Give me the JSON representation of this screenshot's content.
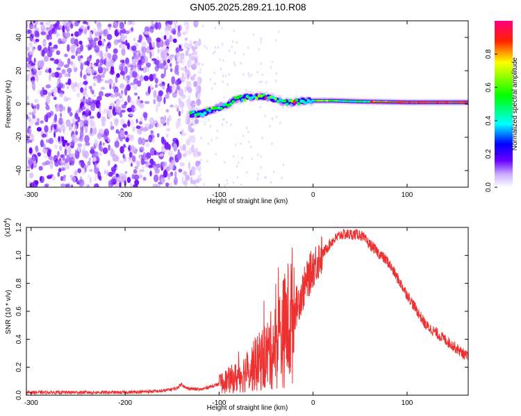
{
  "title": "GN05.2025.289.21.10.R08",
  "chart_data": [
    {
      "type": "heatmap",
      "xlabel": "Height of straight line (km)",
      "ylabel": "Frequency (Hz)",
      "xlim": [
        -305,
        165
      ],
      "ylim": [
        -50,
        50
      ],
      "xticks": [
        -300,
        -200,
        -100,
        0,
        100
      ],
      "yticks": [
        -40,
        -20,
        0,
        20,
        40
      ],
      "xtick_labels": [
        "-300",
        "-200",
        "-100",
        "0",
        "100"
      ],
      "ytick_labels": [
        "-40",
        "-20",
        "0",
        "20",
        "40"
      ],
      "colorbar": {
        "label": "Normalized spectral amplitude",
        "range": [
          0.0,
          1.0
        ],
        "ticks": [
          0.0,
          0.2,
          0.4,
          0.6,
          0.8
        ],
        "tick_labels": [
          "0.0",
          "0.2",
          "0.4",
          "0.6",
          "0.8"
        ],
        "colormap": [
          "#ffffff",
          "#6a00ff",
          "#0000ff",
          "#00ffff",
          "#00ff00",
          "#ffff00",
          "#ff0000",
          "#ff0080"
        ]
      },
      "signal_track": {
        "x": [
          -130,
          -120,
          -110,
          -100,
          -90,
          -80,
          -70,
          -60,
          -50,
          -40,
          -30,
          -20,
          -10,
          0,
          20,
          50,
          100,
          165
        ],
        "y": [
          -6,
          -6,
          -4,
          -2,
          0,
          3,
          4,
          5,
          4,
          3,
          1,
          1,
          2,
          2,
          2,
          1.5,
          1,
          1
        ]
      }
    },
    {
      "type": "line",
      "xlabel": "Height of straight line (km)",
      "ylabel": "SNR (10 * v/v)",
      "y_scale_label": "(x10",
      "y_scale_exponent": "4",
      "xlim": [
        -305,
        165
      ],
      "ylim": [
        0,
        1.2
      ],
      "xticks": [
        -300,
        -200,
        -100,
        0,
        100
      ],
      "yticks": [
        0.0,
        0.2,
        0.4,
        0.6,
        0.8,
        1.0,
        1.2
      ],
      "xtick_labels": [
        "-300",
        "-200",
        "-100",
        "0",
        "100"
      ],
      "ytick_labels": [
        "0.0",
        "0.2",
        "0.4",
        "0.6",
        "0.8",
        "1.0",
        "1.2"
      ],
      "color": "#ee3030",
      "series": [
        {
          "x": [
            -305,
            -250,
            -200,
            -160,
            -145,
            -140,
            -135,
            -120,
            -100,
            -80,
            -60,
            -40,
            -20,
            0,
            20,
            30,
            50,
            60,
            80,
            100,
            120,
            140,
            165
          ],
          "y": [
            0.02,
            0.02,
            0.02,
            0.03,
            0.05,
            0.08,
            0.05,
            0.04,
            0.08,
            0.13,
            0.22,
            0.35,
            0.6,
            0.92,
            1.1,
            1.15,
            1.15,
            1.08,
            0.95,
            0.72,
            0.5,
            0.4,
            0.27
          ]
        }
      ]
    }
  ]
}
